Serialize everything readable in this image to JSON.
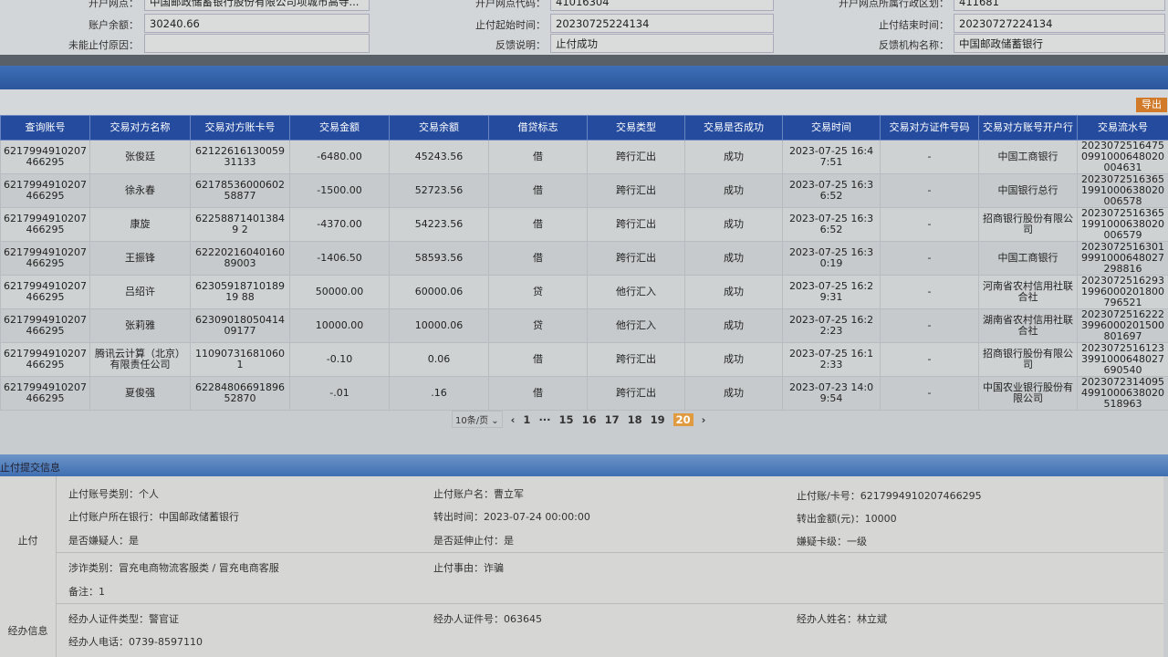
{
  "account_info": {
    "rows": [
      [
        {
          "label": "开户网点：",
          "value": "中国邮政储蓄银行股份有限公司项城市高寺..."
        },
        {
          "label": "开户网点代码：",
          "value": "41016304"
        },
        {
          "label": "开户网点所属行政区划：",
          "value": "411681"
        }
      ],
      [
        {
          "label": "账户余额：",
          "value": "30240.66"
        },
        {
          "label": "止付起始时间：",
          "value": "20230725224134"
        },
        {
          "label": "止付结束时间：",
          "value": "20230727224134"
        }
      ],
      [
        {
          "label": "未能止付原因：",
          "value": ""
        },
        {
          "label": "反馈说明：",
          "value": "止付成功"
        },
        {
          "label": "反馈机构名称：",
          "value": "中国邮政储蓄银行"
        }
      ]
    ]
  },
  "toolbar": {
    "export_label": "导出"
  },
  "table": {
    "headers": [
      "查询账号",
      "交易对方名称",
      "交易对方账卡号",
      "交易金额",
      "交易余额",
      "借贷标志",
      "交易类型",
      "交易是否成功",
      "交易时间",
      "交易对方证件号码",
      "交易对方账号开户行",
      "交易流水号"
    ],
    "rows": [
      [
        "6217994910207466295",
        "张俊廷",
        "6212261613005931133",
        "-6480.00",
        "45243.56",
        "借",
        "跨行汇出",
        "成功",
        "2023-07-25 16:47:51",
        "-",
        "中国工商银行",
        "20230725164750991000648020004631"
      ],
      [
        "6217994910207466295",
        "徐永春",
        "6217853600060258877",
        "-1500.00",
        "52723.56",
        "借",
        "跨行汇出",
        "成功",
        "2023-07-25 16:36:52",
        "-",
        "中国银行总行",
        "20230725163651991000638020006578"
      ],
      [
        "6217994910207466295",
        "康旋",
        "622588714013849 2",
        "-4370.00",
        "54223.56",
        "借",
        "跨行汇出",
        "成功",
        "2023-07-25 16:36:52",
        "-",
        "招商银行股份有限公司",
        "20230725163651991000638020006579"
      ],
      [
        "6217994910207466295",
        "王振锋",
        "6222021604016089003",
        "-1406.50",
        "58593.56",
        "借",
        "跨行汇出",
        "成功",
        "2023-07-25 16:30:19",
        "-",
        "中国工商银行",
        "20230725163019991000648027298816"
      ],
      [
        "6217994910207466295",
        "吕绍许",
        "6230591871018919 88",
        "50000.00",
        "60000.06",
        "贷",
        "他行汇入",
        "成功",
        "2023-07-25 16:29:31",
        "-",
        "河南省农村信用社联合社",
        "20230725162931996000201800796521"
      ],
      [
        "6217994910207466295",
        "张莉雅",
        "6230901805041409177",
        "10000.00",
        "10000.06",
        "贷",
        "他行汇入",
        "成功",
        "2023-07-25 16:22:23",
        "-",
        "湖南省农村信用社联合社",
        "20230725162223996000201500801697"
      ],
      [
        "6217994910207466295",
        "腾讯云计算（北京）有限责任公司",
        "110907316810601",
        "-0.10",
        "0.06",
        "借",
        "跨行汇出",
        "成功",
        "2023-07-25 16:12:33",
        "-",
        "招商银行股份有限公司",
        "20230725161233991000648027690540"
      ],
      [
        "6217994910207466295",
        "夏俊强",
        "6228480669189652870",
        "-.01",
        ".16",
        "借",
        "跨行汇出",
        "成功",
        "2023-07-23 14:09:54",
        "-",
        "中国农业银行股份有限公司",
        "20230723140954991000638020518963"
      ]
    ]
  },
  "pagination": {
    "page_size": "10条/页",
    "pages": [
      "1",
      "···",
      "15",
      "16",
      "17",
      "18",
      "19",
      "20"
    ],
    "current": "20"
  },
  "submit_info": {
    "title": "止付提交信息",
    "group1_label": "止付",
    "group2_label": "经办信息",
    "items": {
      "acct_type": "止付账号类别：个人",
      "acct_name": "止付账户名：曹立军",
      "acct_no": "止付账/卡号：6217994910207466295",
      "bank": "止付账户所在银行：中国邮政储蓄银行",
      "out_time": "转出时间：2023-07-24 00:00:00",
      "out_amount": "转出金额(元)：10000",
      "suspect": "是否嫌疑人：是",
      "extend": "是否延伸止付：是",
      "level": "嫌疑卡级：一级",
      "fraud_type": "涉诈类别：冒充电商物流客服类 / 冒充电商客服",
      "reason": "止付事由：诈骗",
      "remark": "备注：1",
      "op_id_type": "经办人证件类型：警官证",
      "op_id_no": "经办人证件号：063645",
      "op_name": "经办人姓名：林立斌",
      "op_phone": "经办人电话：0739-8597110"
    }
  },
  "colors": {
    "header_blue": "#254b9e",
    "export_orange": "#d07a2a",
    "current_page": "#e09a40"
  }
}
